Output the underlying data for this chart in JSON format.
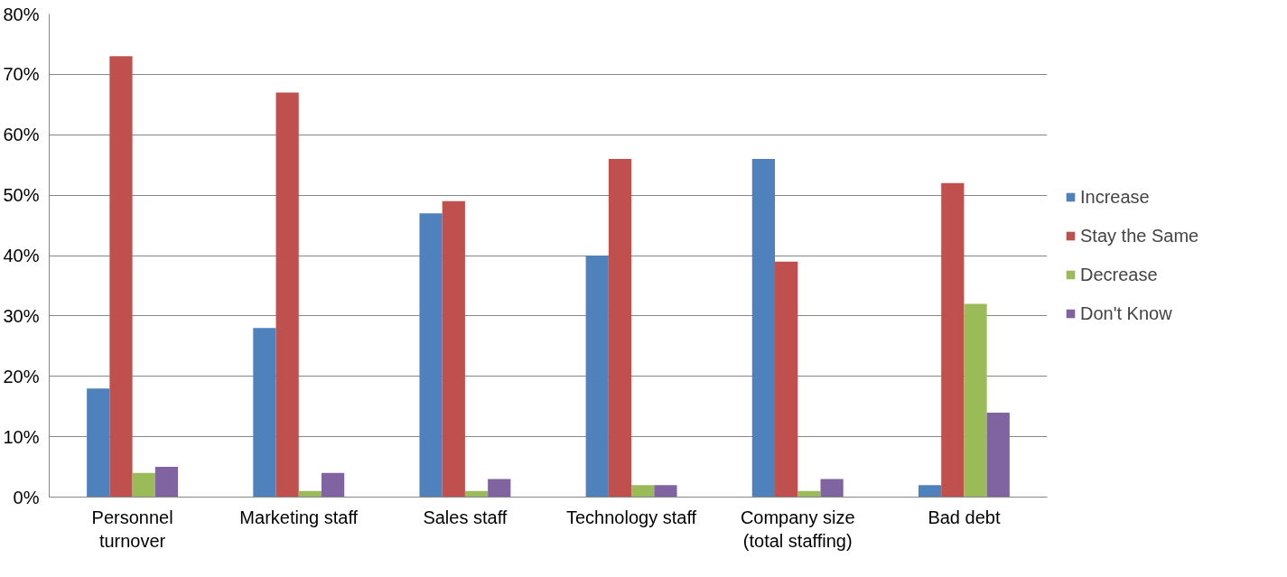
{
  "chart_data": {
    "type": "bar",
    "categories": [
      "Personnel turnover",
      "Marketing staff",
      "Sales staff",
      "Technology staff",
      "Company size (total staffing)",
      "Bad debt"
    ],
    "series": [
      {
        "name": "Increase",
        "color": "#4f81bd",
        "values": [
          18,
          28,
          47,
          40,
          56,
          2
        ]
      },
      {
        "name": "Stay the Same",
        "color": "#c0504d",
        "values": [
          73,
          67,
          49,
          56,
          39,
          52
        ]
      },
      {
        "name": "Decrease",
        "color": "#9bbb59",
        "values": [
          4,
          1,
          1,
          2,
          1,
          32
        ]
      },
      {
        "name": "Don't Know",
        "color": "#8064a2",
        "values": [
          5,
          4,
          3,
          2,
          3,
          14
        ]
      }
    ],
    "ylim": [
      0,
      80
    ],
    "yticks": [
      {
        "value": 0,
        "label": "0%"
      },
      {
        "value": 10,
        "label": "10%"
      },
      {
        "value": 20,
        "label": "20%"
      },
      {
        "value": 30,
        "label": "30%"
      },
      {
        "value": 40,
        "label": "40%"
      },
      {
        "value": 50,
        "label": "50%"
      },
      {
        "value": 60,
        "label": "60%"
      },
      {
        "value": 70,
        "label": "70%"
      },
      {
        "value": 80,
        "label": "80%"
      }
    ],
    "grid": "y",
    "legend": "right"
  }
}
